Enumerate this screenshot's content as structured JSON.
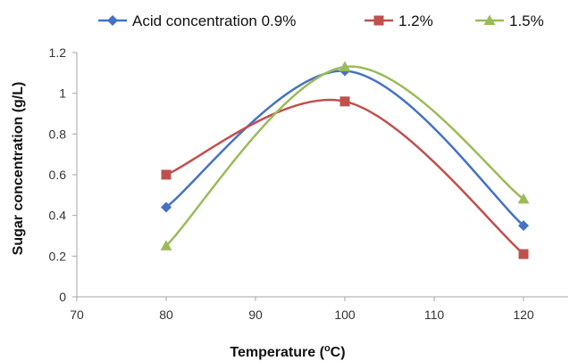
{
  "chart_data": {
    "type": "line",
    "smooth": true,
    "xlabel": {
      "prefix": "Temperature (",
      "sup": "o",
      "suffix": "C)"
    },
    "ylabel": "Sugar concentration (g/L)",
    "xlim": [
      70,
      125
    ],
    "ylim": [
      0,
      1.2
    ],
    "x_ticks": [
      70,
      80,
      90,
      100,
      110,
      120
    ],
    "y_ticks": [
      0,
      0.2,
      0.4,
      0.6,
      0.8,
      1,
      1.2
    ],
    "grid": false,
    "legend_position": "top",
    "series": [
      {
        "name": "Acid concentration 0.9%",
        "color": "#4472C4",
        "marker": "diamond",
        "x": [
          80,
          100,
          120
        ],
        "y": [
          0.44,
          1.11,
          0.35
        ]
      },
      {
        "name": "1.2%",
        "color": "#C0504D",
        "marker": "square",
        "x": [
          80,
          100,
          120
        ],
        "y": [
          0.6,
          0.96,
          0.21
        ]
      },
      {
        "name": "1.5%",
        "color": "#9BBB59",
        "marker": "triangle",
        "x": [
          80,
          100,
          120
        ],
        "y": [
          0.25,
          1.13,
          0.48
        ]
      }
    ]
  }
}
